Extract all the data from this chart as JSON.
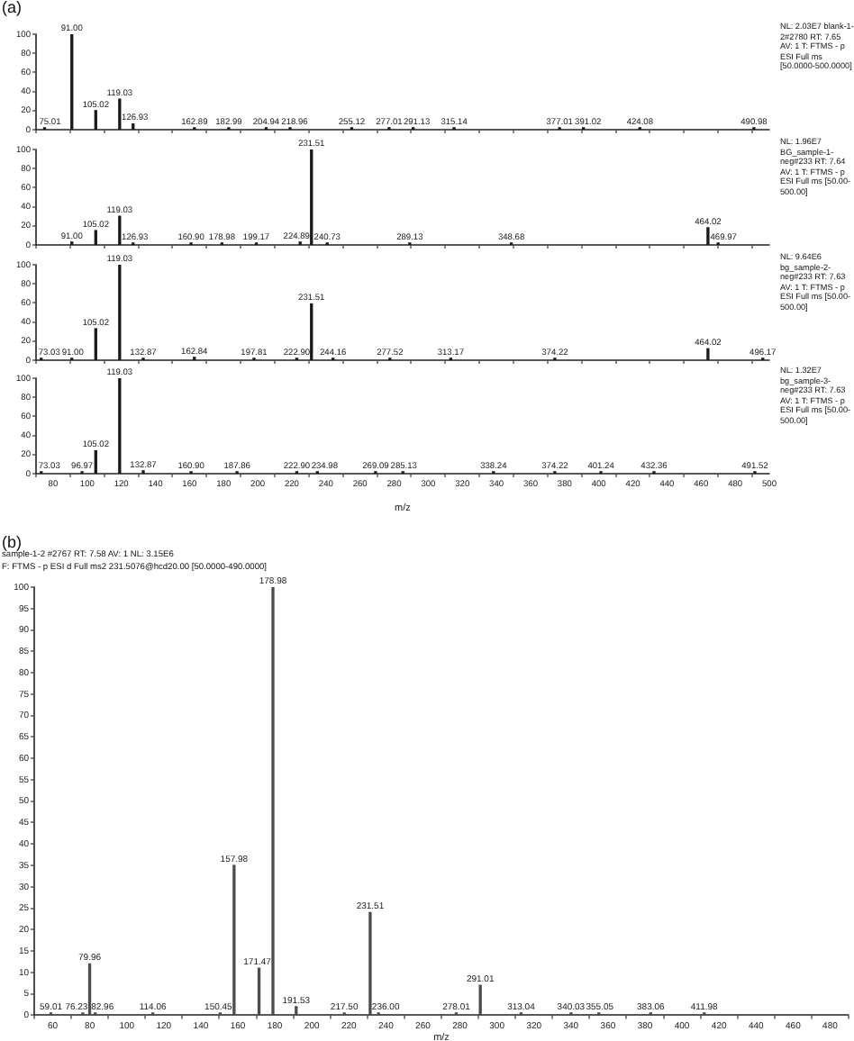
{
  "chart_data": [
    {
      "type": "bar",
      "title": "(a)",
      "x": [
        75.01,
        91.0,
        105.02,
        119.03,
        126.93,
        162.89,
        182.99,
        204.94,
        218.96,
        255.12,
        277.01,
        291.13,
        315.14,
        377.01,
        391.02,
        424.08,
        490.98
      ],
      "values": [
        2,
        100,
        20,
        32,
        6,
        2,
        2,
        2,
        2,
        2,
        2,
        2,
        2,
        2,
        2,
        2,
        2
      ],
      "color": "#1a1a1a",
      "xlim": [
        70,
        500
      ],
      "xticks": [
        80,
        100,
        120,
        140,
        160,
        180,
        200,
        220,
        240,
        260,
        280,
        300,
        320,
        340,
        360,
        380,
        400,
        420,
        440,
        460,
        480,
        500
      ],
      "ylim": [
        0,
        100
      ],
      "yticks": [
        0,
        20,
        40,
        60,
        80,
        100
      ],
      "tick_labels": "y",
      "annotations": [
        "NL: 2.03E7 blank-1-2#2780 RT: 7.65 AV: 1 T: FTMS - p ESI Full ms [50.0000-500.0000]",
        {
          "text": "75.01",
          "x": 75.01,
          "y": 2
        },
        {
          "text": "91.00",
          "x": 91.0,
          "y": 100
        },
        {
          "text": "105.02",
          "x": 105.02,
          "y": 20
        },
        {
          "text": "119.03",
          "x": 119.03,
          "y": 32
        },
        {
          "text": "126.93",
          "x": 126.93,
          "y": 6
        },
        {
          "text": "162.89",
          "x": 162.89,
          "y": 2
        },
        {
          "text": "182.99",
          "x": 182.99,
          "y": 2
        },
        {
          "text": "204.94",
          "x": 204.94,
          "y": 2
        },
        {
          "text": "218.96",
          "x": 218.96,
          "y": 2
        },
        {
          "text": "255.12",
          "x": 255.12,
          "y": 2
        },
        {
          "text": "277.01",
          "x": 277.01,
          "y": 2
        },
        {
          "text": "291.13",
          "x": 291.13,
          "y": 2
        },
        {
          "text": "315.14",
          "x": 315.14,
          "y": 2
        },
        {
          "text": "377.01",
          "x": 377.01,
          "y": 2
        },
        {
          "text": "391.02",
          "x": 391.02,
          "y": 2
        },
        {
          "text": "424.08",
          "x": 424.08,
          "y": 2
        },
        {
          "text": "490.98",
          "x": 490.98,
          "y": 2
        }
      ]
    },
    {
      "type": "bar",
      "x": [
        91.0,
        105.02,
        119.03,
        126.93,
        160.9,
        178.98,
        199.17,
        224.89,
        231.51,
        240.73,
        289.13,
        348.68,
        464.02,
        469.97
      ],
      "values": [
        3,
        15,
        30,
        2,
        2,
        2,
        2,
        3,
        100,
        2,
        2,
        2,
        18,
        2
      ],
      "color": "#1a1a1a",
      "xlim": [
        70,
        500
      ],
      "xticks": [
        80,
        100,
        120,
        140,
        160,
        180,
        200,
        220,
        240,
        260,
        280,
        300,
        320,
        340,
        360,
        380,
        400,
        420,
        440,
        460,
        480,
        500
      ],
      "ylim": [
        0,
        100
      ],
      "yticks": [
        0,
        20,
        40,
        60,
        80,
        100
      ],
      "tick_labels": "y",
      "annotations": [
        "NL: 1.96E7 BG_sample-1-neg#233 RT: 7.64 AV: 1 T: FTMS - p ESI Full ms [50.00-500.00]",
        {
          "text": "91.00",
          "x": 91.0,
          "y": 3
        },
        {
          "text": "105.02",
          "x": 105.02,
          "y": 15
        },
        {
          "text": "119.03",
          "x": 119.03,
          "y": 30
        },
        {
          "text": "126.93",
          "x": 126.93,
          "y": 2
        },
        {
          "text": "160.90",
          "x": 160.9,
          "y": 2
        },
        {
          "text": "178.98",
          "x": 178.98,
          "y": 2
        },
        {
          "text": "199.17",
          "x": 199.17,
          "y": 2
        },
        {
          "text": "224.89",
          "x": 224.89,
          "y": 3
        },
        {
          "text": "231.51",
          "x": 231.51,
          "y": 100
        },
        {
          "text": "240.73",
          "x": 240.73,
          "y": 2
        },
        {
          "text": "289.13",
          "x": 289.13,
          "y": 2
        },
        {
          "text": "348.68",
          "x": 348.68,
          "y": 2
        },
        {
          "text": "464.02",
          "x": 464.02,
          "y": 18
        },
        {
          "text": "469.97",
          "x": 469.97,
          "y": 2
        }
      ]
    },
    {
      "type": "bar",
      "x": [
        73.03,
        91.0,
        105.02,
        119.03,
        132.87,
        162.84,
        197.81,
        222.9,
        231.51,
        244.16,
        277.52,
        313.17,
        374.22,
        464.02,
        496.17
      ],
      "values": [
        2,
        2,
        33,
        100,
        2,
        3,
        2,
        2,
        59,
        2,
        2,
        2,
        2,
        12,
        2
      ],
      "color": "#1a1a1a",
      "xlim": [
        70,
        500
      ],
      "xticks": [
        80,
        100,
        120,
        140,
        160,
        180,
        200,
        220,
        240,
        260,
        280,
        300,
        320,
        340,
        360,
        380,
        400,
        420,
        440,
        460,
        480,
        500
      ],
      "ylim": [
        0,
        100
      ],
      "yticks": [
        0,
        20,
        40,
        60,
        80,
        100
      ],
      "tick_labels": "y",
      "annotations": [
        "NL: 9.64E6 bg_sample-2-neg#233 RT: 7.63 AV: 1 T: FTMS - p ESI Full ms [50.00-500.00]",
        {
          "text": "73.03",
          "x": 73.03,
          "y": 2
        },
        {
          "text": "91.00",
          "x": 91.0,
          "y": 2
        },
        {
          "text": "105.02",
          "x": 105.02,
          "y": 33
        },
        {
          "text": "119.03",
          "x": 119.03,
          "y": 100
        },
        {
          "text": "132.87",
          "x": 132.87,
          "y": 2
        },
        {
          "text": "162.84",
          "x": 162.84,
          "y": 3
        },
        {
          "text": "197.81",
          "x": 197.81,
          "y": 2
        },
        {
          "text": "222.90",
          "x": 222.9,
          "y": 2
        },
        {
          "text": "231.51",
          "x": 231.51,
          "y": 59
        },
        {
          "text": "244.16",
          "x": 244.16,
          "y": 2
        },
        {
          "text": "277.52",
          "x": 277.52,
          "y": 2
        },
        {
          "text": "313.17",
          "x": 313.17,
          "y": 2
        },
        {
          "text": "374.22",
          "x": 374.22,
          "y": 2
        },
        {
          "text": "464.02",
          "x": 464.02,
          "y": 12
        },
        {
          "text": "496.17",
          "x": 496.17,
          "y": 2
        }
      ]
    },
    {
      "type": "bar",
      "x": [
        73.03,
        96.97,
        105.02,
        119.03,
        132.87,
        160.9,
        187.86,
        222.9,
        234.98,
        269.09,
        285.13,
        338.24,
        374.22,
        401.24,
        432.36,
        491.52
      ],
      "values": [
        2,
        2,
        24,
        100,
        3,
        2,
        2,
        2,
        2,
        2,
        2,
        2,
        2,
        2,
        2,
        2
      ],
      "color": "#1a1a1a",
      "xlim": [
        70,
        500
      ],
      "xticks": [
        80,
        100,
        120,
        140,
        160,
        180,
        200,
        220,
        240,
        260,
        280,
        300,
        320,
        340,
        360,
        380,
        400,
        420,
        440,
        460,
        480,
        500
      ],
      "ylim": [
        0,
        100
      ],
      "yticks": [
        0,
        20,
        40,
        60,
        80,
        100
      ],
      "xlabel": "m/z",
      "annotations": [
        "NL: 1.32E7 bg_sample-3-neg#233 RT: 7.63 AV: 1 T: FTMS - p ESI Full ms [50.00-500.00]",
        {
          "text": "73.03",
          "x": 73.03,
          "y": 2
        },
        {
          "text": "96.97",
          "x": 96.97,
          "y": 2
        },
        {
          "text": "105.02",
          "x": 105.02,
          "y": 24
        },
        {
          "text": "119.03",
          "x": 119.03,
          "y": 100
        },
        {
          "text": "132.87",
          "x": 132.87,
          "y": 3
        },
        {
          "text": "160.90",
          "x": 160.9,
          "y": 2
        },
        {
          "text": "187.86",
          "x": 187.86,
          "y": 2
        },
        {
          "text": "222.90",
          "x": 222.9,
          "y": 2
        },
        {
          "text": "234.98",
          "x": 234.98,
          "y": 2
        },
        {
          "text": "269.09",
          "x": 269.09,
          "y": 2
        },
        {
          "text": "285.13",
          "x": 285.13,
          "y": 2
        },
        {
          "text": "338.24",
          "x": 338.24,
          "y": 2
        },
        {
          "text": "374.22",
          "x": 374.22,
          "y": 2
        },
        {
          "text": "401.24",
          "x": 401.24,
          "y": 2
        },
        {
          "text": "432.36",
          "x": 432.36,
          "y": 2
        },
        {
          "text": "491.52",
          "x": 491.52,
          "y": 2
        }
      ]
    },
    {
      "type": "bar",
      "title": "(b)",
      "x": [
        59.01,
        76.23,
        79.96,
        82.96,
        114.06,
        150.45,
        157.98,
        171.47,
        178.98,
        191.53,
        217.5,
        231.51,
        236.0,
        278.01,
        291.01,
        313.04,
        340.03,
        355.05,
        383.06,
        411.98
      ],
      "values": [
        0.5,
        0.5,
        12,
        0.5,
        0.5,
        0.5,
        35,
        11,
        100,
        2,
        0.5,
        24,
        0.5,
        0.5,
        7,
        0.5,
        0.5,
        0.5,
        0.5,
        0.5
      ],
      "color": "#4d4d4d",
      "xlim": [
        50,
        490
      ],
      "xticks": [
        60,
        80,
        100,
        120,
        140,
        160,
        180,
        200,
        220,
        240,
        260,
        280,
        300,
        320,
        340,
        360,
        380,
        400,
        420,
        440,
        460,
        480
      ],
      "ylim": [
        0,
        100
      ],
      "yticks": [
        0,
        5,
        10,
        15,
        20,
        25,
        30,
        35,
        40,
        45,
        50,
        55,
        60,
        65,
        70,
        75,
        80,
        85,
        90,
        95,
        100
      ],
      "xlabel": "m/z",
      "annotations": [
        "sample-1-2 #2767 RT: 7.58 AV: 1 NL: 3.15E6",
        "F: FTMS - p ESI d Full ms2 231.5076@hcd20.00 [50.0000-490.0000]",
        {
          "text": "59.01",
          "x": 59.01,
          "y": 0.5
        },
        {
          "text": "76.23",
          "x": 76.23,
          "y": 0.5
        },
        {
          "text": "79.96",
          "x": 79.96,
          "y": 12
        },
        {
          "text": "82.96",
          "x": 82.96,
          "y": 0.5
        },
        {
          "text": "114.06",
          "x": 114.06,
          "y": 0.5
        },
        {
          "text": "150.45",
          "x": 150.45,
          "y": 0.5
        },
        {
          "text": "157.98",
          "x": 157.98,
          "y": 35
        },
        {
          "text": "171.47",
          "x": 171.47,
          "y": 11
        },
        {
          "text": "178.98",
          "x": 178.98,
          "y": 100
        },
        {
          "text": "191.53",
          "x": 191.53,
          "y": 2
        },
        {
          "text": "217.50",
          "x": 217.5,
          "y": 0.5
        },
        {
          "text": "231.51",
          "x": 231.51,
          "y": 24
        },
        {
          "text": "236.00",
          "x": 236.0,
          "y": 0.5
        },
        {
          "text": "278.01",
          "x": 278.01,
          "y": 0.5
        },
        {
          "text": "291.01",
          "x": 291.01,
          "y": 7
        },
        {
          "text": "313.04",
          "x": 313.04,
          "y": 0.5
        },
        {
          "text": "340.03",
          "x": 340.03,
          "y": 0.5
        },
        {
          "text": "355.05",
          "x": 355.05,
          "y": 0.5
        },
        {
          "text": "383.06",
          "x": 383.06,
          "y": 0.5
        },
        {
          "text": "411.98",
          "x": 411.98,
          "y": 0.5
        }
      ]
    }
  ]
}
